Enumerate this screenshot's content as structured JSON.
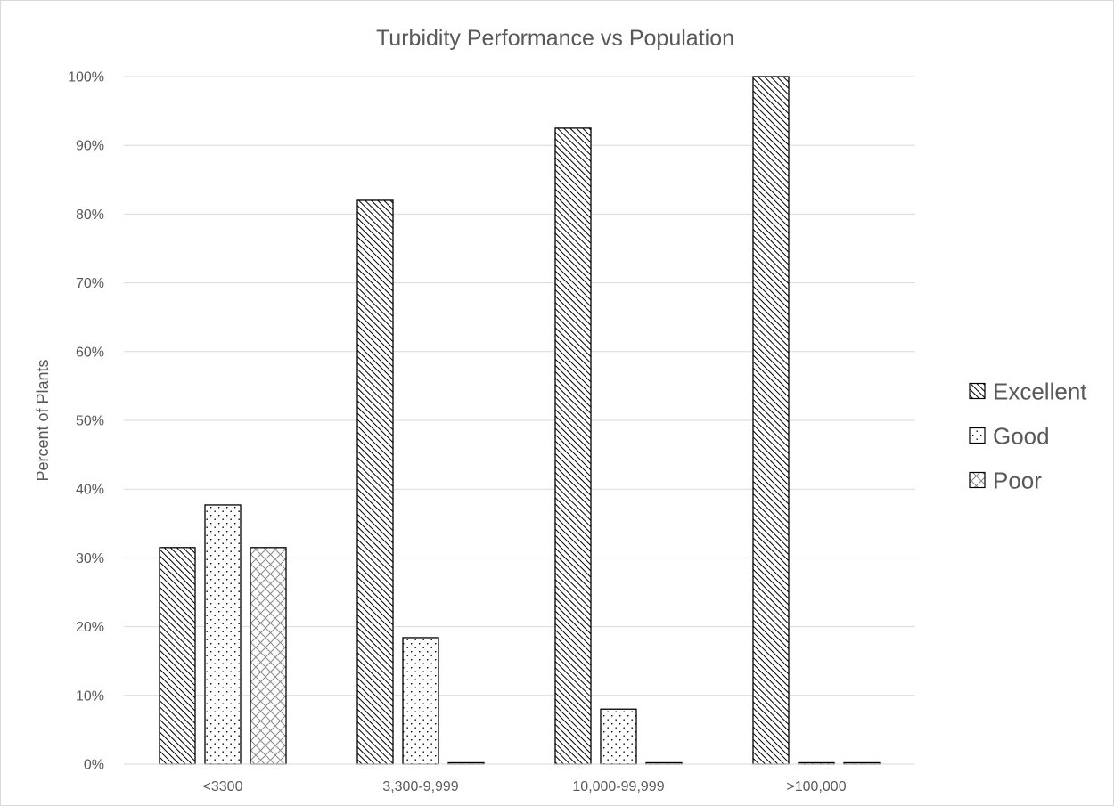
{
  "chart_data": {
    "type": "bar",
    "title": "Turbidity Performance vs Population",
    "xlabel": "",
    "ylabel": "Percent of Plants",
    "categories": [
      "<3300",
      "3,300-9,999",
      "10,000-99,999",
      ">100,000"
    ],
    "series": [
      {
        "name": "Excellent",
        "values": [
          31.5,
          82.0,
          92.5,
          100.0
        ],
        "pattern": "diagonal-hatch"
      },
      {
        "name": "Good",
        "values": [
          37.7,
          18.4,
          8.0,
          0.2
        ],
        "pattern": "dots"
      },
      {
        "name": "Poor",
        "values": [
          31.5,
          0.2,
          0.2,
          0.2
        ],
        "pattern": "crosshatch"
      }
    ],
    "ylim": [
      0,
      100
    ],
    "yticks": [
      "0%",
      "10%",
      "20%",
      "30%",
      "40%",
      "50%",
      "60%",
      "70%",
      "80%",
      "90%",
      "100%"
    ],
    "grid": true,
    "legend_position": "right",
    "colors": {
      "bar_stroke": "#000000",
      "grid": "#d9d9d9",
      "text": "#595959"
    }
  }
}
